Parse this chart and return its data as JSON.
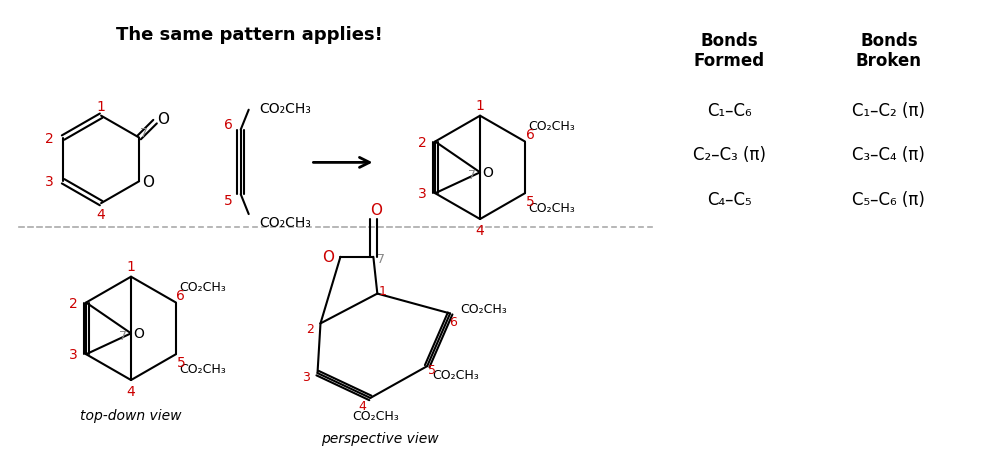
{
  "title": "The same pattern applies!",
  "bg_color": "#ffffff",
  "bonds_formed_header": "Bonds\nFormed",
  "bonds_broken_header": "Bonds\nBroken",
  "bonds_formed": [
    "C₁–C₆",
    "C₂–C₃ (π)",
    "C₄–C₅"
  ],
  "bonds_broken": [
    "C₁–C₂ (π)",
    "C₃–C₄ (π)",
    "C₅–C₆ (π)"
  ],
  "red": "#cc0000",
  "gray": "#888888",
  "black": "#000000"
}
